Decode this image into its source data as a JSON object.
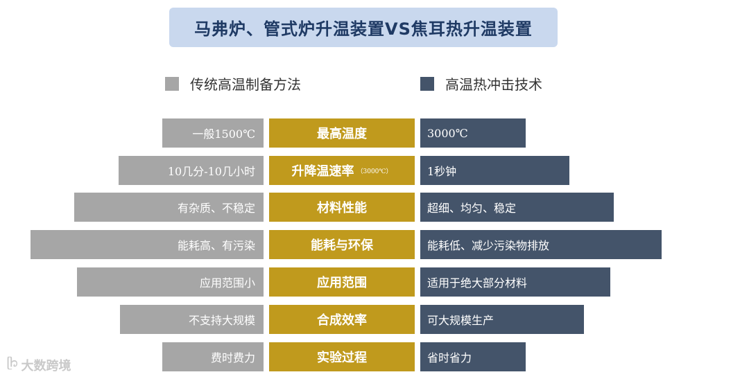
{
  "title": "马弗炉、管式炉升温装置VS焦耳热升温装置",
  "legend": {
    "left": {
      "label": "传统高温制备方法",
      "color": "#a6a6a6"
    },
    "right": {
      "label": "高温热冲击技术",
      "color": "#44546a"
    }
  },
  "rows": [
    {
      "left": "一般1500℃",
      "mid": "最高温度",
      "mid_note": "",
      "right": "3000℃"
    },
    {
      "left": "10几分-10几小时",
      "mid": "升降温速率",
      "mid_note": "（3000℃）",
      "right": "1秒钟"
    },
    {
      "left": "有杂质、不稳定",
      "mid": "材料性能",
      "mid_note": "",
      "right": "超细、均匀、稳定"
    },
    {
      "left": "能耗高、有污染",
      "mid": "能耗与环保",
      "mid_note": "",
      "right": "能耗低、减少污染物排放"
    },
    {
      "left": "应用范围小",
      "mid": "应用范围",
      "mid_note": "",
      "right": "适用于绝大部分材料"
    },
    {
      "left": "不支持大规模",
      "mid": "合成效率",
      "mid_note": "",
      "right": "可大规模生产"
    },
    {
      "left": "费时费力",
      "mid": "实验过程",
      "mid_note": "",
      "right": "省时省力"
    }
  ],
  "watermark": {
    "logo": "ᥫ᭡",
    "text": "大数跨境"
  },
  "colors": {
    "mid": "#c09a1d",
    "title_bg": "#c9d8ee",
    "title_text": "#1f3a64"
  }
}
